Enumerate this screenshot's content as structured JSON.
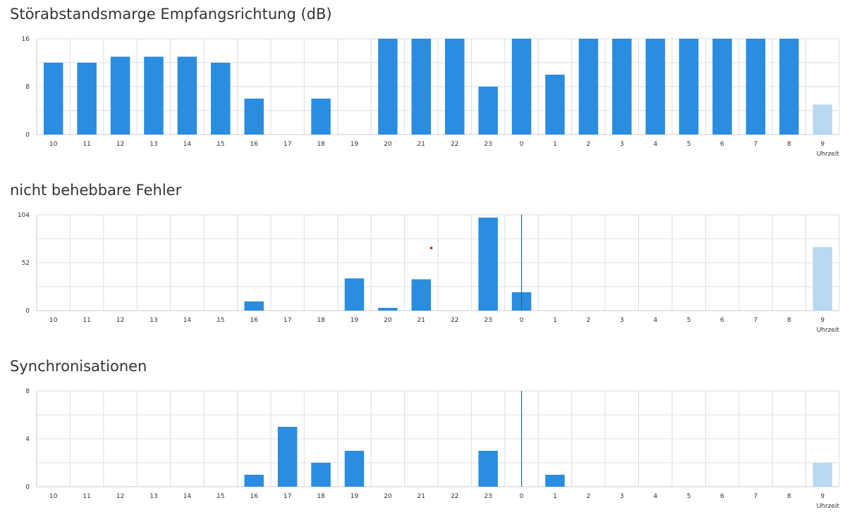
{
  "colors": {
    "bar": "#2a8ddf",
    "bar_current": "#b8d9f1",
    "grid": "#dddddd",
    "axis": "#cccccc",
    "marker": "#1f6f79",
    "dot": "#e0191e"
  },
  "chart_data": [
    {
      "type": "bar",
      "title": "Störabstandsmarge Empfangsrichtung (dB)",
      "xlabel": "Uhrzeit",
      "ylabel": "",
      "categories": [
        "10",
        "11",
        "12",
        "13",
        "14",
        "15",
        "16",
        "17",
        "18",
        "19",
        "20",
        "21",
        "22",
        "23",
        "0",
        "1",
        "2",
        "3",
        "4",
        "5",
        "6",
        "7",
        "8",
        "9"
      ],
      "values": [
        12,
        12,
        13,
        13,
        13,
        12,
        6,
        0,
        6,
        0,
        16,
        16,
        16,
        8,
        16,
        10,
        16,
        16,
        16,
        16,
        16,
        16,
        16,
        5
      ],
      "current_index": 23,
      "ylim": [
        0,
        16
      ],
      "yticks": [
        0,
        8,
        16
      ],
      "marker_category": null,
      "grid": true
    },
    {
      "type": "bar",
      "title": "nicht behebbare Fehler",
      "xlabel": "Uhrzeit",
      "ylabel": "",
      "categories": [
        "10",
        "11",
        "12",
        "13",
        "14",
        "15",
        "16",
        "17",
        "18",
        "19",
        "20",
        "21",
        "22",
        "23",
        "0",
        "1",
        "2",
        "3",
        "4",
        "5",
        "6",
        "7",
        "8",
        "9"
      ],
      "values": [
        0,
        0,
        0,
        0,
        0,
        0,
        10,
        0,
        0,
        35,
        3,
        34,
        0,
        101,
        20,
        0,
        0,
        0,
        0,
        0,
        0,
        0,
        0,
        69
      ],
      "current_index": 23,
      "ylim": [
        0,
        104
      ],
      "yticks": [
        0,
        52,
        104
      ],
      "marker_category": "0",
      "dot": {
        "x": 21.3,
        "y": 68
      },
      "grid": true
    },
    {
      "type": "bar",
      "title": "Synchronisationen",
      "xlabel": "Uhrzeit",
      "ylabel": "",
      "categories": [
        "10",
        "11",
        "12",
        "13",
        "14",
        "15",
        "16",
        "17",
        "18",
        "19",
        "20",
        "21",
        "22",
        "23",
        "0",
        "1",
        "2",
        "3",
        "4",
        "5",
        "6",
        "7",
        "8",
        "9"
      ],
      "values": [
        0,
        0,
        0,
        0,
        0,
        0,
        1,
        5,
        2,
        3,
        0,
        0,
        0,
        3,
        0,
        1,
        0,
        0,
        0,
        0,
        0,
        0,
        0,
        2
      ],
      "current_index": 23,
      "ylim": [
        0,
        8
      ],
      "yticks": [
        0,
        4,
        8
      ],
      "marker_category": "0",
      "grid": true
    }
  ]
}
